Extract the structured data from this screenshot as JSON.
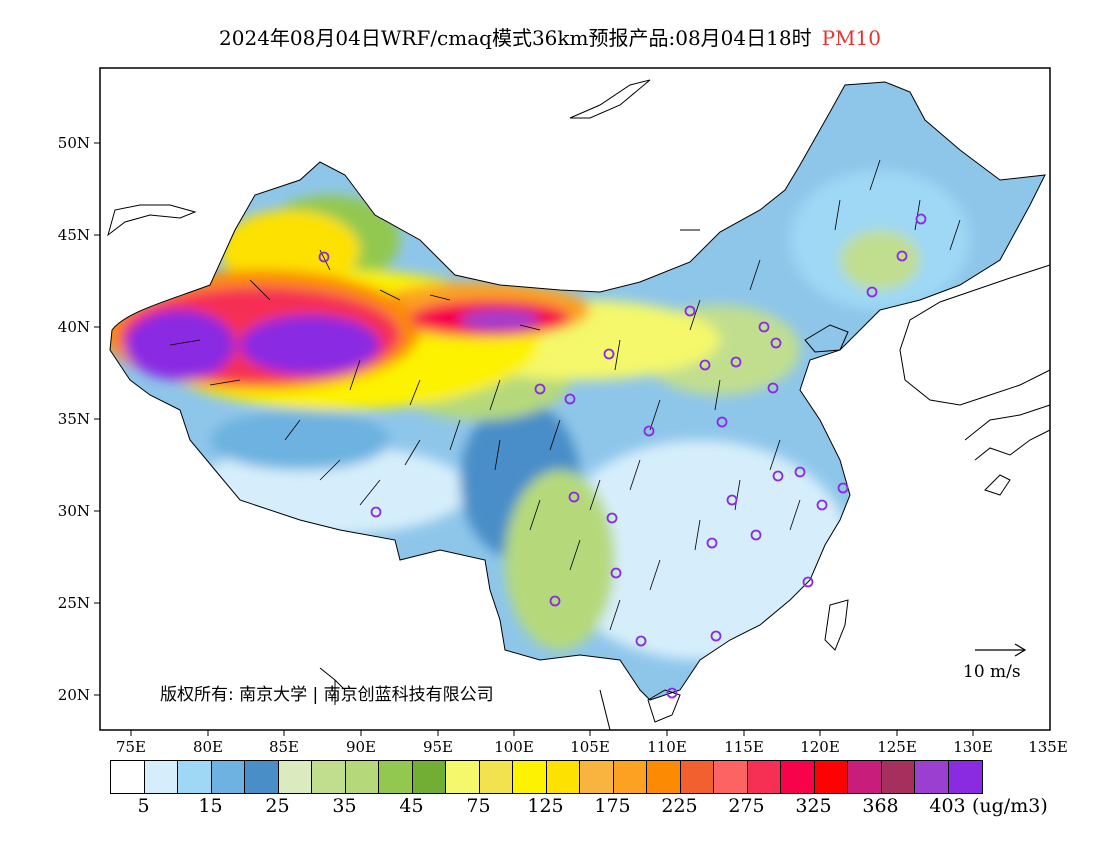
{
  "title": {
    "main": "2024年08月04日WRF/cmaq模式36km预报产品:08月04日18时",
    "pollutant": "PM10",
    "pollutant_color": "#e8332f"
  },
  "axes": {
    "lon_labels": [
      "75E",
      "80E",
      "85E",
      "90E",
      "95E",
      "100E",
      "105E",
      "110E",
      "115E",
      "120E",
      "125E",
      "130E",
      "135E"
    ],
    "lat_labels": [
      "50N",
      "45N",
      "40N",
      "35N",
      "30N",
      "25N",
      "20N"
    ]
  },
  "copyright": "版权所有: 南京大学 | 南京创蓝科技有限公司",
  "wind_scale_label": "10 m/s",
  "colorbar": {
    "colors": [
      "#ffffff",
      "#d6eefb",
      "#9ed8f5",
      "#6db2e0",
      "#4a8ec8",
      "#dcebbf",
      "#c1de8f",
      "#b5d97a",
      "#92c84f",
      "#72ad34",
      "#f4f86a",
      "#f2e24e",
      "#fdf200",
      "#fde100",
      "#f9b43f",
      "#fba223",
      "#fc8a03",
      "#f26030",
      "#fe6363",
      "#f62f55",
      "#f7034c",
      "#fd0202",
      "#c91d7c",
      "#a5305d",
      "#9b3fd0",
      "#8a2be2"
    ],
    "tick_labels": [
      "5",
      "15",
      "25",
      "35",
      "45",
      "75",
      "125",
      "175",
      "225",
      "275",
      "325",
      "368",
      "403"
    ],
    "units": "(ug/m3)"
  }
}
